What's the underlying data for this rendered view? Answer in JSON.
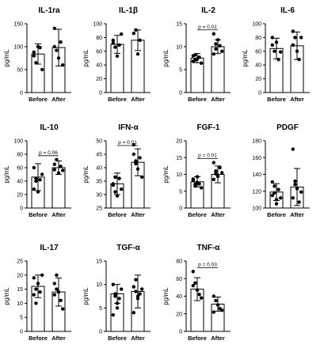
{
  "chart_data": [
    {
      "type": "bar",
      "title": "IL-1ra",
      "categories": [
        "Before",
        "After"
      ],
      "ylabel": "pg/mL",
      "ylim": [
        0,
        150
      ],
      "yticks": [
        0,
        50,
        100,
        150
      ],
      "series": [
        {
          "values": [
            84,
            98
          ],
          "error": [
            22,
            40
          ],
          "points": [
            [
              88,
              65,
              100,
              98,
              50,
              80
            ],
            [
              140,
              92,
              75,
              110,
              60,
              100
            ]
          ]
        }
      ],
      "annotation": ""
    },
    {
      "type": "bar",
      "title": "IL-1β",
      "categories": [
        "Before",
        "After"
      ],
      "ylabel": "pg/mL",
      "ylim": [
        0,
        100
      ],
      "yticks": [
        0,
        20,
        40,
        60,
        80,
        100
      ],
      "series": [
        {
          "values": [
            70,
            76
          ],
          "error": [
            13,
            15
          ],
          "points": [
            [
              76,
              66,
              53,
              69,
              85,
              72
            ],
            [
              86,
              91,
              56,
              76
            ]
          ]
        }
      ],
      "annotation": ""
    },
    {
      "type": "bar",
      "title": "IL-2",
      "categories": [
        "Before",
        "After"
      ],
      "ylabel": "pg/mL",
      "ylim": [
        0,
        15
      ],
      "yticks": [
        0,
        5,
        10,
        15
      ],
      "series": [
        {
          "values": [
            7.5,
            10
          ],
          "error": [
            1,
            1.5
          ],
          "points": [
            [
              6.8,
              8.2,
              7.3,
              7.7,
              6.4,
              8.0,
              7.1
            ],
            [
              12.8,
              9.5,
              11.5,
              10.2,
              9,
              8.4,
              10.6
            ]
          ]
        }
      ],
      "annotation": "p = 0.01"
    },
    {
      "type": "bar",
      "title": "IL-6",
      "categories": [
        "Before",
        "After"
      ],
      "ylabel": "pg/mL",
      "ylim": [
        0,
        100
      ],
      "yticks": [
        0,
        20,
        40,
        60,
        80,
        100
      ],
      "series": [
        {
          "values": [
            64,
            68
          ],
          "error": [
            15,
            20
          ],
          "points": [
            [
              80,
              60,
              73,
              48,
              59,
              69
            ],
            [
              89,
              80,
              60,
              48,
              80,
              69
            ]
          ]
        }
      ],
      "annotation": ""
    },
    {
      "type": "bar",
      "title": "IL-10",
      "categories": [
        "Before",
        "After"
      ],
      "ylabel": "pg/mL",
      "ylim": [
        0,
        100
      ],
      "yticks": [
        0,
        20,
        40,
        60,
        80,
        100
      ],
      "series": [
        {
          "values": [
            46,
            60
          ],
          "error": [
            20,
            10
          ],
          "points": [
            [
              60,
              40,
              24,
              42,
              50,
              28,
              44
            ],
            [
              65,
              72,
              52,
              62,
              56,
              57
            ]
          ]
        }
      ],
      "annotation": "p = 0.06"
    },
    {
      "type": "bar",
      "title": "IFN-α",
      "categories": [
        "Before",
        "After"
      ],
      "ylabel": "pg/mL",
      "ylim": [
        25,
        50
      ],
      "yticks": [
        25,
        30,
        35,
        40,
        45,
        50
      ],
      "series": [
        {
          "values": [
            34,
            42
          ],
          "error": [
            4,
            5
          ],
          "points": [
            [
              33.5,
              36.5,
              29.5,
              36,
              32,
              34,
              31
            ],
            [
              48.5,
              41.5,
              39.5,
              43.7,
              36.5,
              45,
              42.5
            ]
          ]
        }
      ],
      "annotation": "p = 0.01"
    },
    {
      "type": "bar",
      "title": "FGF-1",
      "categories": [
        "Before",
        "After"
      ],
      "ylabel": "pg/mL",
      "ylim": [
        0,
        20
      ],
      "yticks": [
        0,
        5,
        10,
        15,
        20
      ],
      "series": [
        {
          "values": [
            7.8,
            10
          ],
          "error": [
            1.5,
            2.5
          ],
          "points": [
            [
              8.2,
              7.1,
              9.3,
              7.2,
              6.0,
              8.6,
              6.5,
              7.6
            ],
            [
              13.5,
              11,
              9.5,
              12,
              10.5,
              8.5,
              10.2,
              9.4
            ]
          ]
        }
      ],
      "annotation": "p = 0.01"
    },
    {
      "type": "bar",
      "title": "PDGF",
      "categories": [
        "Before",
        "After"
      ],
      "ylabel": "",
      "ylim": [
        100,
        180
      ],
      "yticks": [
        100,
        120,
        140,
        160,
        180
      ],
      "series": [
        {
          "values": [
            119,
            125
          ],
          "error": [
            10,
            22
          ],
          "points": [
            [
              131,
              118,
              105,
              122,
              112,
              115,
              126,
              110
            ],
            [
              170,
              132,
              123,
              107,
              119,
              112,
              128
            ]
          ]
        }
      ],
      "annotation": ""
    },
    {
      "type": "bar",
      "title": "IL-17",
      "categories": [
        "Before",
        "After"
      ],
      "ylabel": "pg/mL",
      "ylim": [
        0,
        25
      ],
      "yticks": [
        0,
        5,
        10,
        15,
        20,
        25
      ],
      "series": [
        {
          "values": [
            16,
            14
          ],
          "error": [
            4,
            5
          ],
          "points": [
            [
              19,
              15,
              17,
              14,
              20,
              13,
              10
            ],
            [
              17,
              20,
              14,
              11,
              8,
              13,
              15
            ]
          ]
        }
      ],
      "annotation": ""
    },
    {
      "type": "bar",
      "title": "TGF-α",
      "categories": [
        "Before",
        "After"
      ],
      "ylabel": "pg/mL",
      "ylim": [
        0,
        15
      ],
      "yticks": [
        0,
        5,
        10,
        15
      ],
      "series": [
        {
          "values": [
            8,
            8.5
          ],
          "error": [
            2,
            3.5
          ],
          "points": [
            [
              10,
              8,
              6,
              7,
              9,
              3.5,
              7.5,
              5
            ],
            [
              9.5,
              11,
              7,
              8,
              9,
              4,
              8.5,
              7.5
            ]
          ]
        }
      ],
      "annotation": ""
    },
    {
      "type": "bar",
      "title": "TNF-α",
      "categories": [
        "Before",
        "After"
      ],
      "ylabel": "pg/mL",
      "ylim": [
        0,
        80
      ],
      "yticks": [
        0,
        20,
        40,
        60,
        80
      ],
      "series": [
        {
          "values": [
            48,
            31
          ],
          "error": [
            13,
            8
          ],
          "points": [
            [
              68,
              55,
              47,
              42,
              38,
              52
            ],
            [
              40,
              35,
              30,
              26,
              24,
              22
            ]
          ]
        }
      ],
      "annotation": "p = 0.03"
    }
  ]
}
